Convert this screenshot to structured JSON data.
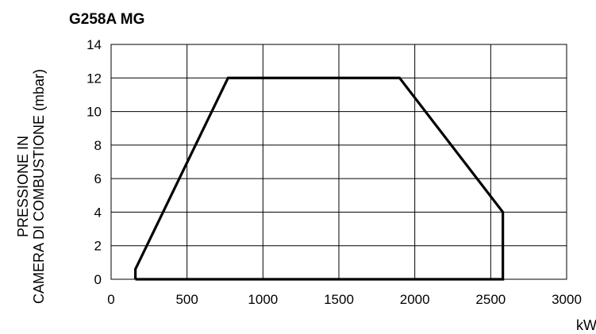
{
  "chart_data": {
    "type": "line",
    "title": "G258A MG",
    "xlabel": "kW",
    "ylabel_line1": "PRESSIONE IN",
    "ylabel_line2": "CAMERA DI COMBUSTIONE (mbar)",
    "xlim": [
      0,
      3000
    ],
    "ylim": [
      0,
      14
    ],
    "x_ticks": [
      0,
      500,
      1000,
      1500,
      2000,
      2500,
      3000
    ],
    "y_ticks": [
      0,
      2,
      4,
      6,
      8,
      10,
      12,
      14
    ],
    "grid": true,
    "series": [
      {
        "x": [
          160,
          160,
          770,
          1900,
          2580,
          2580,
          160
        ],
        "y": [
          0,
          0.6,
          12,
          12,
          4,
          0,
          0
        ]
      }
    ]
  }
}
